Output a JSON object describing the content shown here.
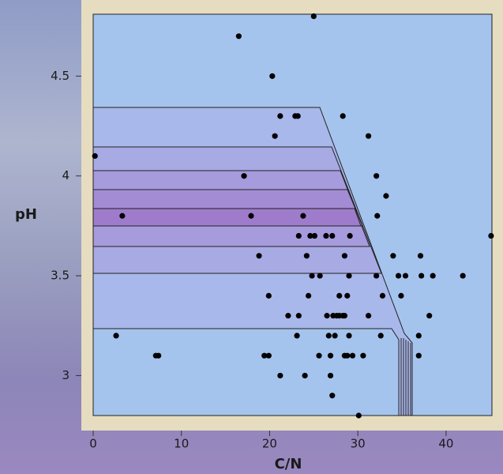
{
  "chart_data": {
    "type": "scatter",
    "xlabel": "C/N",
    "ylabel": "pH",
    "x": [
      25,
      16.5,
      20.3,
      0.2,
      21.2,
      22.9,
      23.2,
      28.3,
      20.6,
      31.2,
      17.1,
      32.1,
      33.2,
      3.3,
      17.9,
      23.8,
      32.2,
      23.3,
      24.6,
      25.1,
      26.4,
      27.1,
      29.1,
      45.1,
      18.8,
      24.2,
      28.5,
      34.0,
      37.1,
      24.8,
      25.7,
      29.0,
      32.1,
      34.6,
      35.4,
      37.2,
      38.5,
      41.9,
      19.9,
      24.4,
      27.9,
      28.8,
      32.8,
      34.9,
      22.1,
      23.3,
      26.5,
      27.2,
      27.6,
      27.9,
      28.3,
      28.5,
      31.2,
      38.1,
      23.1,
      26.7,
      27.4,
      29.0,
      32.6,
      36.9,
      2.6,
      7.1,
      7.4,
      19.4,
      19.9,
      25.6,
      26.9,
      28.5,
      28.8,
      29.4,
      30.6,
      36.9,
      21.2,
      24.0,
      26.9,
      27.1,
      30.1
    ],
    "values": [
      4.8,
      4.7,
      4.5,
      4.1,
      4.3,
      4.3,
      4.3,
      4.3,
      4.2,
      4.2,
      4.0,
      4.0,
      3.9,
      3.8,
      3.8,
      3.8,
      3.8,
      3.7,
      3.7,
      3.7,
      3.7,
      3.7,
      3.7,
      3.7,
      3.6,
      3.6,
      3.6,
      3.6,
      3.6,
      3.5,
      3.5,
      3.5,
      3.5,
      3.5,
      3.5,
      3.5,
      3.5,
      3.5,
      3.4,
      3.4,
      3.4,
      3.4,
      3.4,
      3.4,
      3.3,
      3.3,
      3.3,
      3.3,
      3.3,
      3.3,
      3.3,
      3.3,
      3.3,
      3.3,
      3.2,
      3.2,
      3.2,
      3.2,
      3.2,
      3.2,
      3.2,
      3.1,
      3.1,
      3.1,
      3.1,
      3.1,
      3.1,
      3.1,
      3.1,
      3.1,
      3.1,
      3.1,
      3.0,
      3.0,
      3.0,
      2.9,
      2.8
    ],
    "color": "#000000",
    "xlim": [
      0,
      45.2
    ],
    "xticks": [
      0,
      10,
      20,
      30,
      40
    ],
    "ylim": [
      2.8,
      4.81
    ],
    "yticks": [
      3,
      3.5,
      4,
      4.5
    ]
  }
}
